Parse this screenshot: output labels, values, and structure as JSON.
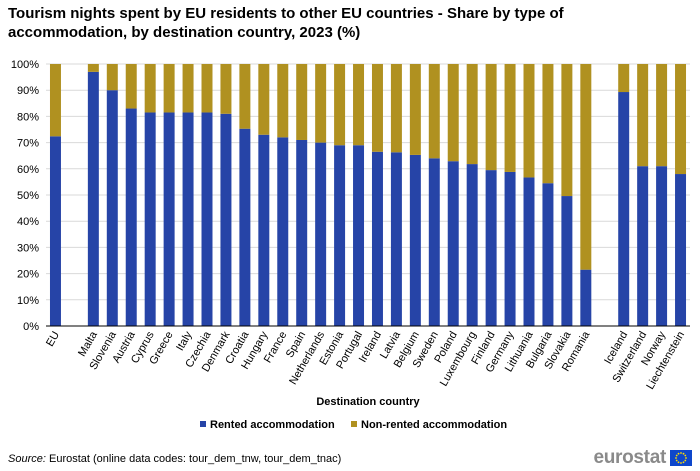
{
  "chart_data": {
    "type": "bar",
    "stacked": true,
    "title": "Tourism nights spent by EU residents to other EU countries - Share by type of accommodation, by destination country, 2023 (%)",
    "xlabel": "Destination country",
    "ylabel": "",
    "ylim": [
      0,
      100
    ],
    "y_ticks": [
      "0%",
      "10%",
      "20%",
      "30%",
      "40%",
      "50%",
      "60%",
      "70%",
      "80%",
      "90%",
      "100%"
    ],
    "grid": true,
    "legend_position": "bottom",
    "groups": [
      [
        "EU"
      ],
      [
        "Malta",
        "Slovenia",
        "Austria",
        "Cyprus",
        "Greece",
        "Italy",
        "Czechia",
        "Denmark",
        "Croatia",
        "Hungary",
        "France",
        "Spain",
        "Netherlands",
        "Estonia",
        "Portugal",
        "Ireland",
        "Latvia",
        "Belgium",
        "Sweden",
        "Poland",
        "Luxembourg",
        "Finland",
        "Germany",
        "Lithuania",
        "Bulgaria",
        "Slovakia",
        "Romania"
      ],
      [
        "Iceland",
        "Switzerland",
        "Norway",
        "Liechtenstein"
      ]
    ],
    "categories": [
      "EU",
      "Malta",
      "Slovenia",
      "Austria",
      "Cyprus",
      "Greece",
      "Italy",
      "Czechia",
      "Denmark",
      "Croatia",
      "Hungary",
      "France",
      "Spain",
      "Netherlands",
      "Estonia",
      "Portugal",
      "Ireland",
      "Latvia",
      "Belgium",
      "Sweden",
      "Poland",
      "Luxembourg",
      "Finland",
      "Germany",
      "Lithuania",
      "Bulgaria",
      "Slovakia",
      "Romania",
      "Iceland",
      "Switzerland",
      "Norway",
      "Liechtenstein"
    ],
    "series": [
      {
        "name": "Rented accommodation",
        "color": "#2644a7",
        "values": [
          72.4,
          97.0,
          90.0,
          83.0,
          81.5,
          81.5,
          81.5,
          81.5,
          81.0,
          75.3,
          73.0,
          72.0,
          71.0,
          70.0,
          69.0,
          69.0,
          66.5,
          66.3,
          65.3,
          64.0,
          62.9,
          61.8,
          59.5,
          58.8,
          56.7,
          54.5,
          49.6,
          21.5,
          89.3,
          61.0,
          61.0,
          58.0
        ]
      },
      {
        "name": "Non-rented accommodation",
        "color": "#b09120",
        "values": [
          27.6,
          3.0,
          10.0,
          17.0,
          18.5,
          18.5,
          18.5,
          18.5,
          19.0,
          24.7,
          27.0,
          28.0,
          29.0,
          30.0,
          31.0,
          31.0,
          33.5,
          33.7,
          34.7,
          36.0,
          37.1,
          38.2,
          40.5,
          41.2,
          43.3,
          45.5,
          50.4,
          78.5,
          10.7,
          39.0,
          39.0,
          42.0
        ]
      }
    ]
  },
  "source": {
    "label": "Source:",
    "text": "Eurostat (online data codes: tour_dem_tnw, tour_dem_tnac)"
  },
  "logo": {
    "text": "eurostat"
  }
}
